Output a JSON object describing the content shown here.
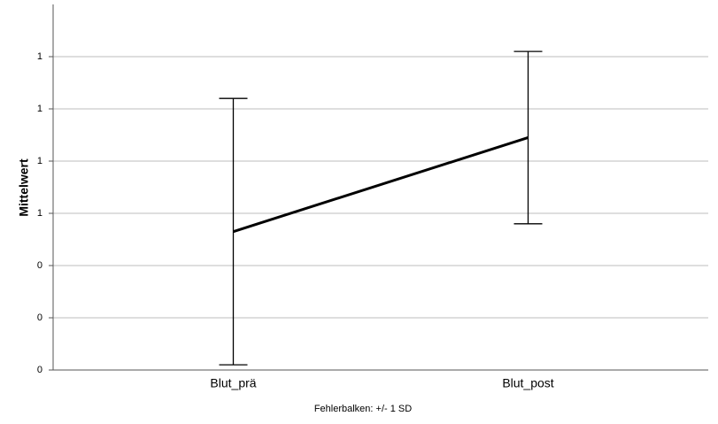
{
  "chart_data": {
    "type": "line",
    "y_label": "Mittelwert",
    "note": "Fehlerbalken: +/- 1 SD",
    "categories": [
      "Blut_prä",
      "Blut_post"
    ],
    "series": [
      {
        "color": "#000000",
        "values": [
          0.53,
          0.89
        ],
        "errors": [
          0.51,
          0.33
        ]
      }
    ],
    "ylim": [
      0,
      1.4
    ],
    "yticks": [
      0,
      {
        "value": 0.2,
        "label": "0"
      },
      {
        "value": 0.4,
        "label": "0"
      },
      {
        "value": 0.6,
        "label": "1"
      },
      {
        "value": 0.8,
        "label": "1"
      },
      1,
      {
        "value": 1.2,
        "label": "1"
      }
    ],
    "grid": true
  }
}
